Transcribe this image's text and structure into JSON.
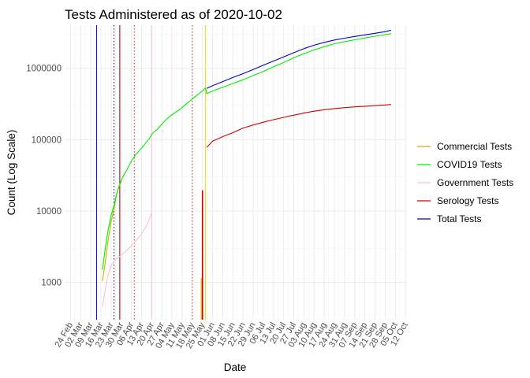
{
  "chart_data": {
    "type": "line",
    "title": "Tests Administered as of 2020-10-02",
    "xlabel": "Date",
    "ylabel": "Count (Log Scale)",
    "y_scale": "log",
    "ylim": [
      300,
      4000000
    ],
    "xlim": [
      "2020-02-20",
      "2020-10-13"
    ],
    "grid": true,
    "legend_position": "right",
    "y_ticks": [
      {
        "value": 1000,
        "label": "1000"
      },
      {
        "value": 10000,
        "label": "10000"
      },
      {
        "value": 100000,
        "label": "100000"
      },
      {
        "value": 1000000,
        "label": "1000000"
      }
    ],
    "x_ticks": [
      {
        "date": "2020-02-24",
        "label": "24 Feb"
      },
      {
        "date": "2020-03-02",
        "label": "02 Mar"
      },
      {
        "date": "2020-03-09",
        "label": "09 Mar"
      },
      {
        "date": "2020-03-16",
        "label": "16 Mar"
      },
      {
        "date": "2020-03-23",
        "label": "23 Mar"
      },
      {
        "date": "2020-03-30",
        "label": "30 Mar"
      },
      {
        "date": "2020-04-06",
        "label": "06 Apr"
      },
      {
        "date": "2020-04-13",
        "label": "13 Apr"
      },
      {
        "date": "2020-04-20",
        "label": "20 Apr"
      },
      {
        "date": "2020-04-27",
        "label": "27 Apr"
      },
      {
        "date": "2020-05-04",
        "label": "04 May"
      },
      {
        "date": "2020-05-11",
        "label": "11 May"
      },
      {
        "date": "2020-05-18",
        "label": "18 May"
      },
      {
        "date": "2020-05-25",
        "label": "25 May"
      },
      {
        "date": "2020-06-01",
        "label": "01 Jun"
      },
      {
        "date": "2020-06-08",
        "label": "08 Jun"
      },
      {
        "date": "2020-06-15",
        "label": "15 Jun"
      },
      {
        "date": "2020-06-22",
        "label": "22 Jun"
      },
      {
        "date": "2020-06-29",
        "label": "29 Jun"
      },
      {
        "date": "2020-07-06",
        "label": "06 Jul"
      },
      {
        "date": "2020-07-13",
        "label": "13 Jul"
      },
      {
        "date": "2020-07-20",
        "label": "20 Jul"
      },
      {
        "date": "2020-07-27",
        "label": "27 Jul"
      },
      {
        "date": "2020-08-03",
        "label": "03 Aug"
      },
      {
        "date": "2020-08-10",
        "label": "10 Aug"
      },
      {
        "date": "2020-08-17",
        "label": "17 Aug"
      },
      {
        "date": "2020-08-24",
        "label": "24 Aug"
      },
      {
        "date": "2020-08-31",
        "label": "31 Aug"
      },
      {
        "date": "2020-09-07",
        "label": "07 Sep"
      },
      {
        "date": "2020-09-14",
        "label": "14 Sep"
      },
      {
        "date": "2020-09-21",
        "label": "21 Sep"
      },
      {
        "date": "2020-09-28",
        "label": "28 Sep"
      },
      {
        "date": "2020-10-05",
        "label": "05 Oct"
      },
      {
        "date": "2020-10-12",
        "label": "12 Oct"
      }
    ],
    "reference_lines": [
      {
        "date": "2020-03-13",
        "color": "#0000ff",
        "style": "solid"
      },
      {
        "date": "2020-03-25",
        "color": "#000080",
        "style": "dotted"
      },
      {
        "date": "2020-03-29",
        "color": "#8b0000",
        "style": "solid"
      },
      {
        "date": "2020-04-08",
        "color": "#cd2626",
        "style": "dotted"
      },
      {
        "date": "2020-04-20",
        "color": "#ffc0cb",
        "style": "solid"
      },
      {
        "date": "2020-05-18",
        "color": "#cd2626",
        "style": "dotted"
      },
      {
        "date": "2020-05-27",
        "color": "#ffd700",
        "style": "solid"
      }
    ],
    "series": [
      {
        "name": "Commercial Tests",
        "color": "#cdad00",
        "x": [
          "2020-03-17",
          "2020-03-19",
          "2020-03-21",
          "2020-03-23",
          "2020-03-25",
          "2020-03-27",
          "2020-03-30"
        ],
        "y": [
          1050,
          1900,
          4000,
          7000,
          10500,
          18000,
          26000
        ]
      },
      {
        "name": "COVID19 Tests",
        "color": "#00ee00",
        "x": [
          "2020-03-17",
          "2020-03-19",
          "2020-03-21",
          "2020-03-23",
          "2020-03-25",
          "2020-03-27",
          "2020-03-29",
          "2020-03-31",
          "2020-04-03",
          "2020-04-06",
          "2020-04-09",
          "2020-04-13",
          "2020-04-17",
          "2020-04-21",
          "2020-04-24",
          "2020-04-27",
          "2020-05-01",
          "2020-05-05",
          "2020-05-10",
          "2020-05-15",
          "2020-05-20",
          "2020-05-25",
          "2020-05-27",
          "2020-05-28",
          "2020-06-01",
          "2020-06-08",
          "2020-06-15",
          "2020-06-22",
          "2020-06-29",
          "2020-07-06",
          "2020-07-13",
          "2020-07-20",
          "2020-07-27",
          "2020-08-03",
          "2020-08-10",
          "2020-08-17",
          "2020-08-24",
          "2020-08-31",
          "2020-09-07",
          "2020-09-14",
          "2020-09-21",
          "2020-09-28",
          "2020-10-02"
        ],
        "y": [
          1500,
          3000,
          5500,
          8500,
          12000,
          18000,
          24000,
          30000,
          38000,
          50000,
          62000,
          76000,
          95000,
          125000,
          140000,
          165000,
          200000,
          230000,
          270000,
          330000,
          400000,
          480000,
          530000,
          440000,
          480000,
          540000,
          610000,
          690000,
          790000,
          900000,
          1050000,
          1200000,
          1400000,
          1600000,
          1800000,
          2000000,
          2200000,
          2350000,
          2500000,
          2650000,
          2800000,
          2950000,
          3050000
        ]
      },
      {
        "name": "Government Tests",
        "color": "#ffc0cb",
        "x": [
          "2020-03-17",
          "2020-03-19",
          "2020-03-21",
          "2020-03-23",
          "2020-03-26",
          "2020-03-29",
          "2020-04-01",
          "2020-04-05",
          "2020-04-09",
          "2020-04-13",
          "2020-04-17",
          "2020-04-20"
        ],
        "y": [
          450,
          800,
          1300,
          1700,
          2100,
          2300,
          2600,
          3100,
          3800,
          4800,
          6500,
          9500
        ]
      },
      {
        "name": "Serology Tests",
        "color": "#cd0000",
        "x": [
          "2020-05-28",
          "2020-06-01",
          "2020-06-08",
          "2020-06-15",
          "2020-06-22",
          "2020-06-29",
          "2020-07-06",
          "2020-07-13",
          "2020-07-20",
          "2020-07-27",
          "2020-08-03",
          "2020-08-10",
          "2020-08-17",
          "2020-08-24",
          "2020-08-31",
          "2020-09-07",
          "2020-09-14",
          "2020-09-21",
          "2020-09-28",
          "2020-10-02"
        ],
        "y": [
          78000,
          95000,
          110000,
          125000,
          145000,
          160000,
          175000,
          190000,
          205000,
          220000,
          235000,
          250000,
          262000,
          272000,
          280000,
          287000,
          293000,
          299000,
          305000,
          310000
        ]
      },
      {
        "name": "Total Tests",
        "color": "#0000cd",
        "x": [
          "2020-05-28",
          "2020-06-01",
          "2020-06-08",
          "2020-06-15",
          "2020-06-22",
          "2020-06-29",
          "2020-07-06",
          "2020-07-13",
          "2020-07-20",
          "2020-07-27",
          "2020-08-03",
          "2020-08-10",
          "2020-08-17",
          "2020-08-24",
          "2020-08-31",
          "2020-09-07",
          "2020-09-14",
          "2020-09-21",
          "2020-09-28",
          "2020-10-02"
        ],
        "y": [
          520000,
          570000,
          650000,
          740000,
          840000,
          960000,
          1100000,
          1260000,
          1440000,
          1650000,
          1880000,
          2100000,
          2300000,
          2480000,
          2630000,
          2780000,
          2930000,
          3080000,
          3250000,
          3400000
        ]
      }
    ],
    "legend": [
      {
        "label": "Commercial Tests",
        "color": "#cdad00"
      },
      {
        "label": "COVID19 Tests",
        "color": "#00ee00"
      },
      {
        "label": "Government Tests",
        "color": "#ffc0cb"
      },
      {
        "label": "Serology Tests",
        "color": "#cd0000"
      },
      {
        "label": "Total Tests",
        "color": "#0000cd"
      }
    ]
  }
}
